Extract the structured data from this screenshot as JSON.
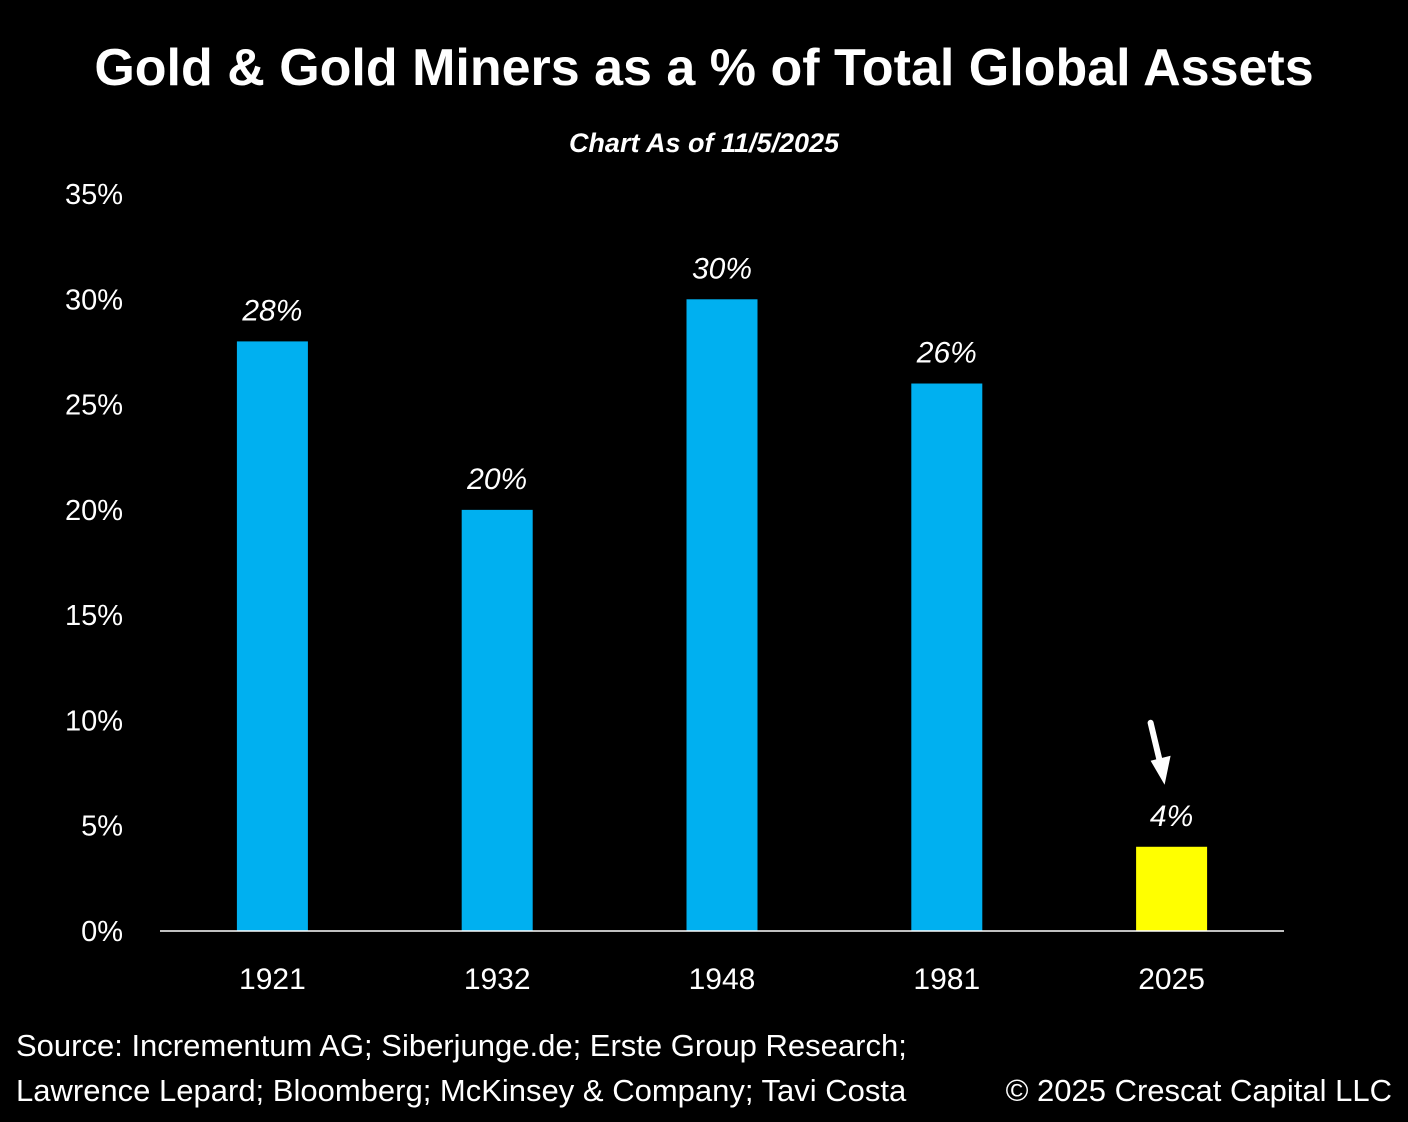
{
  "chart_data": {
    "type": "bar",
    "title": "Gold & Gold Miners as a % of Total Global Assets",
    "subtitle": "Chart As of 11/5/2025",
    "categories": [
      "1921",
      "1932",
      "1948",
      "1981",
      "2025"
    ],
    "values": [
      28,
      20,
      30,
      26,
      4
    ],
    "data_labels": [
      "28%",
      "20%",
      "30%",
      "26%",
      "4%"
    ],
    "bar_colors": [
      "#00b0f0",
      "#00b0f0",
      "#00b0f0",
      "#00b0f0",
      "#ffff00"
    ],
    "ylim": [
      0,
      35
    ],
    "yticks": [
      0,
      5,
      10,
      15,
      20,
      25,
      30,
      35
    ],
    "ytick_labels": [
      "0%",
      "5%",
      "10%",
      "15%",
      "20%",
      "25%",
      "30%",
      "35%"
    ],
    "annotations": [
      {
        "type": "arrow",
        "target": "2025",
        "color": "#ffffff"
      }
    ],
    "grid": false,
    "background": "#000000"
  },
  "footer": {
    "source_line1": "Source: Incrementum AG; Siberjunge.de; Erste Group Research;",
    "source_line2": "Lawrence Lepard; Bloomberg; McKinsey & Company; Tavi Costa",
    "copyright": "© 2025 Crescat Capital LLC"
  }
}
